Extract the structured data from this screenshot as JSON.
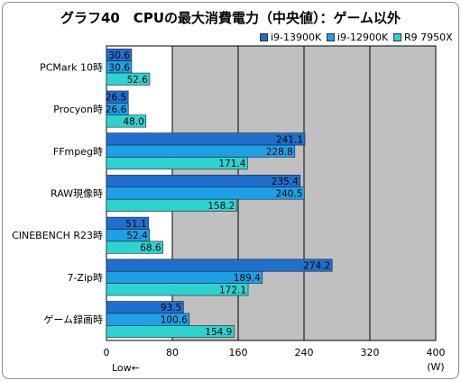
{
  "title": "グラフ40　CPUの最大消費電力（中央値）：ゲーム以外",
  "colors": {
    "plot_bg": "#c0c0c0",
    "gridline": "#000000",
    "label_band": "#ffffff"
  },
  "chart_data": {
    "type": "bar",
    "orientation": "horizontal",
    "title": "グラフ40　CPUの最大消費電力（中央値）：ゲーム以外",
    "categories": [
      "PCMark 10時",
      "Procyon時",
      "FFmpeg時",
      "RAW現像時",
      "CINEBENCH R23時",
      "7-Zip時",
      "ゲーム録画時"
    ],
    "series": [
      {
        "name": "i9-13900K",
        "color": "#1f6fce",
        "values": [
          30.6,
          26.5,
          241.1,
          235.4,
          51.1,
          274.2,
          93.5
        ]
      },
      {
        "name": "i9-12900K",
        "color": "#1ea0e8",
        "values": [
          30.6,
          26.6,
          228.8,
          240.5,
          52.4,
          189.4,
          100.6
        ]
      },
      {
        "name": "R9 7950X",
        "color": "#2ed3d0",
        "values": [
          52.6,
          48.0,
          171.4,
          158.2,
          68.6,
          172.1,
          154.9
        ]
      }
    ],
    "xlim": [
      0,
      400
    ],
    "xticks": [
      0,
      80,
      160,
      240,
      320,
      400
    ],
    "unit": "(W)",
    "note": "Low←",
    "grid": true,
    "legend_position": "top-right"
  }
}
